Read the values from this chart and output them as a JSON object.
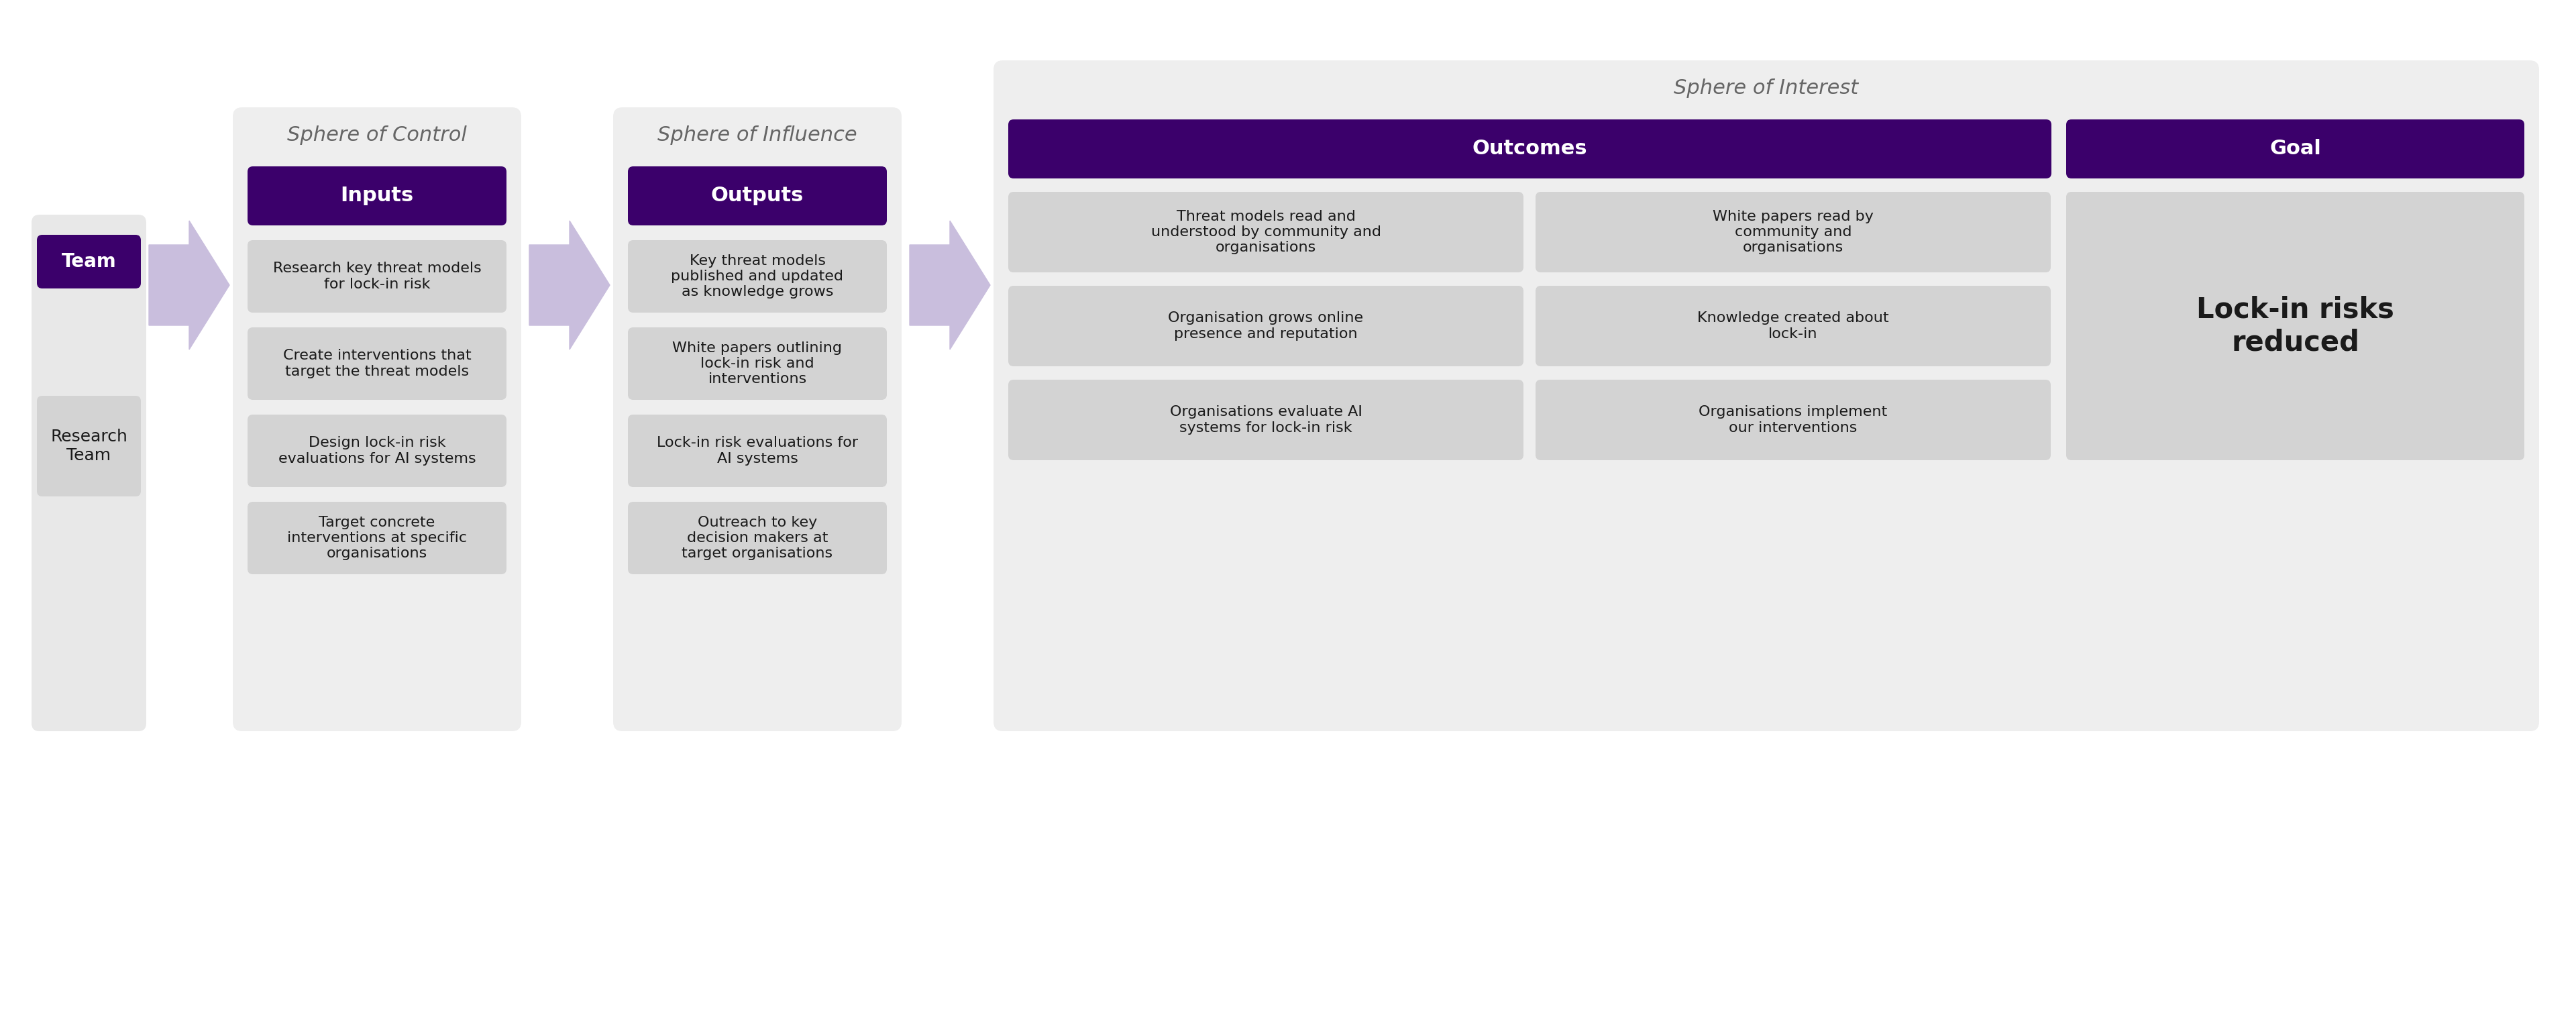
{
  "bg_color": "#ffffff",
  "panel_bg": "#eeeeee",
  "header_color": "#3b006b",
  "item_bg": "#d3d3d3",
  "text_color": "#1a1a1a",
  "header_text_color": "#ffffff",
  "sphere_label_color": "#666666",
  "arrow_color": "#c9bedd",
  "sphere_control": {
    "title": "Sphere of Control",
    "header": "Inputs",
    "items": [
      "Research key threat models\nfor lock-in risk",
      "Create interventions that\ntarget the threat models",
      "Design lock-in risk\nevaluations for AI systems",
      "Target concrete\ninterventions at specific\norganisations"
    ]
  },
  "sphere_influence": {
    "title": "Sphere of Influence",
    "header": "Outputs",
    "items": [
      "Key threat models\npublished and updated\nas knowledge grows",
      "White papers outlining\nlock-in risk and\ninterventions",
      "Lock-in risk evaluations for\nAI systems",
      "Outreach to key\ndecision makers at\ntarget organisations"
    ]
  },
  "sphere_interest": {
    "title": "Sphere of Interest",
    "outcomes_header": "Outcomes",
    "goal_header": "Goal",
    "outcome_items_left": [
      "Threat models read and\nunderstood by community and\norganisations",
      "Organisation grows online\npresence and reputation",
      "Organisations evaluate AI\nsystems for lock-in risk"
    ],
    "outcome_items_right": [
      "White papers read by\ncommunity and\norganisations",
      "Knowledge created about\nlock-in",
      "Organisations implement\nour interventions"
    ],
    "goal_text": "Lock-in risks\nreduced"
  }
}
